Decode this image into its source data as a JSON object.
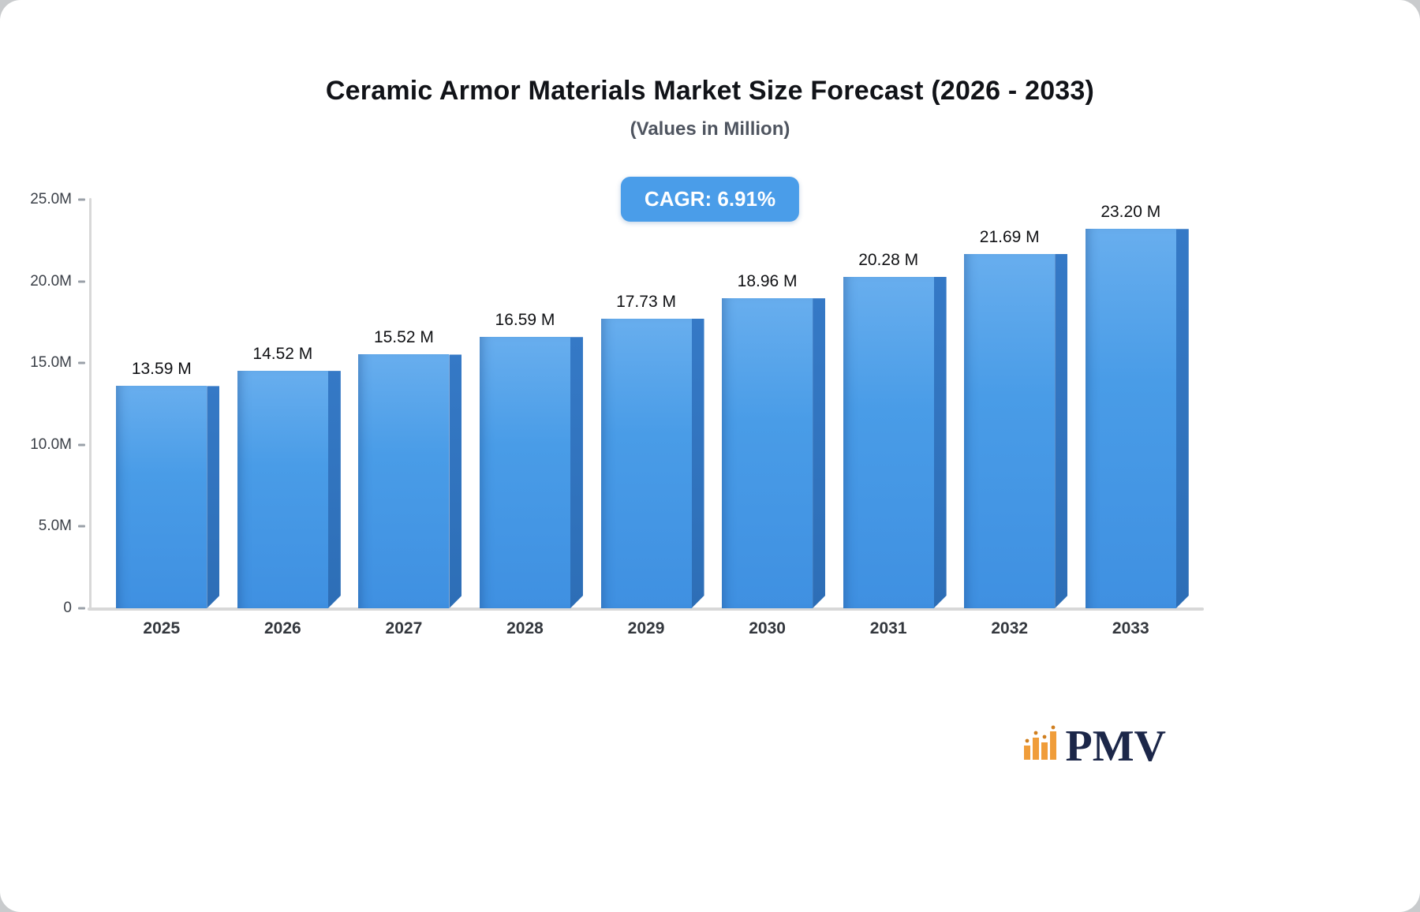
{
  "header": {
    "title": "Ceramic Armor Materials Market Size Forecast (2026 - 2033)",
    "subtitle": "(Values in Million)",
    "cagr_label": "CAGR: 6.91%"
  },
  "chart_data": {
    "type": "bar",
    "title": "Ceramic Armor Materials Market Size Forecast (2026 - 2033)",
    "subtitle": "(Values in Million)",
    "annotation": "CAGR: 6.91%",
    "categories": [
      "2025",
      "2026",
      "2027",
      "2028",
      "2029",
      "2030",
      "2031",
      "2032",
      "2033"
    ],
    "values": [
      13.59,
      14.52,
      15.52,
      16.59,
      17.73,
      18.96,
      20.28,
      21.69,
      23.2
    ],
    "value_labels": [
      "13.59 M",
      "14.52 M",
      "15.52 M",
      "16.59 M",
      "17.73 M",
      "18.96 M",
      "20.28 M",
      "21.69 M",
      "23.20 M"
    ],
    "xlabel": "",
    "ylabel": "",
    "ylim": [
      0,
      25
    ],
    "y_ticks": [
      {
        "label": "25.0M",
        "value": 25
      },
      {
        "label": "20.0M",
        "value": 20
      },
      {
        "label": "15.0M",
        "value": 15
      },
      {
        "label": "10.0M",
        "value": 10
      },
      {
        "label": "5.0M",
        "value": 5
      },
      {
        "label": "0",
        "value": 0
      }
    ],
    "grid": false,
    "legend": "none",
    "bar_color": "#4a9ce8",
    "bar_side_color": "#2e74bf",
    "badge_color": "#4a9de9"
  },
  "footer": {
    "logo_text": "PMV",
    "logo_icon": "bar-chart-icon",
    "logo_icon_color": "#f09d3a",
    "logo_text_color": "#1c2749"
  }
}
